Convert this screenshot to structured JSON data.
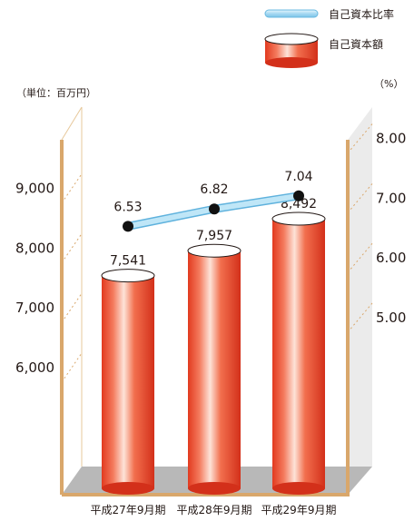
{
  "chart_data": {
    "type": "bar+line",
    "title": "",
    "categories": [
      "平成27年9月期",
      "平成28年9月期",
      "平成29年9月期"
    ],
    "series": [
      {
        "name": "自己資本額",
        "type": "bar",
        "axis": "left",
        "values": [
          7541,
          7957,
          8492
        ],
        "value_labels": [
          "7,541",
          "7,957",
          "8,492"
        ],
        "color": "#e8462a"
      },
      {
        "name": "自己資本比率",
        "type": "line",
        "axis": "right",
        "values": [
          6.53,
          6.82,
          7.04
        ],
        "value_labels": [
          "6.53",
          "6.82",
          "7.04"
        ],
        "color": "#a8d8f0"
      }
    ],
    "left_axis": {
      "unit_label": "（単位：百万円）",
      "ticks": [
        6000,
        7000,
        8000,
        9000
      ],
      "tick_labels": [
        "6,000",
        "7,000",
        "8,000",
        "9,000"
      ]
    },
    "right_axis": {
      "unit_label": "（%）",
      "ticks": [
        5,
        6,
        7,
        8
      ],
      "tick_labels": [
        "5.00",
        "6.00",
        "7.00",
        "8.00"
      ]
    },
    "legend_position": "top-right",
    "grid": true
  }
}
